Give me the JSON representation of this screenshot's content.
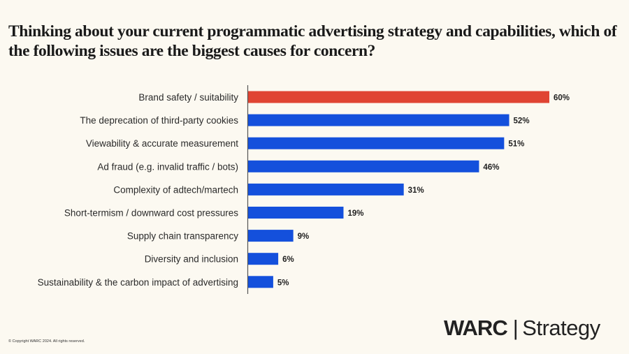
{
  "chart_data": {
    "type": "bar",
    "orientation": "horizontal",
    "title": "Thinking about your current programmatic advertising strategy and capabilities, which of the following issues are the biggest causes for concern?",
    "xlabel": "",
    "ylabel": "",
    "xlim": [
      0,
      60
    ],
    "grid": false,
    "value_suffix": "%",
    "categories": [
      "Brand safety / suitability",
      "The deprecation of third-party cookies",
      "Viewability & accurate measurement",
      "Ad fraud (e.g. invalid traffic / bots)",
      "Complexity of adtech/martech",
      "Short-termism / downward cost pressures",
      "Supply chain transparency",
      "Diversity and inclusion",
      "Sustainability & the carbon impact of advertising"
    ],
    "values": [
      60,
      52,
      51,
      46,
      31,
      19,
      9,
      6,
      5
    ],
    "data_labels": [
      "60%",
      "52%",
      "51%",
      "46%",
      "31%",
      "19%",
      "9%",
      "6%",
      "5%"
    ],
    "highlight_index": 0,
    "colors": {
      "highlight": "#e04433",
      "default": "#1450dc",
      "axis": "#555555"
    }
  },
  "footer": {
    "copyright": "© Copyright WARC 2024. All rights reserved.",
    "logo_brand": "WARC",
    "logo_separator": "|",
    "logo_product": "Strategy"
  }
}
